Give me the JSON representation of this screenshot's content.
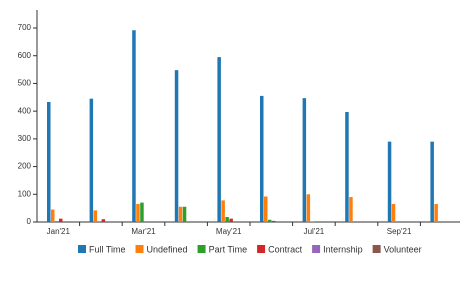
{
  "chart_data": {
    "type": "bar",
    "categories": [
      "Jan'21",
      null,
      "Mar'21",
      null,
      "May'21",
      null,
      "Jul'21",
      null,
      "Sep'21",
      null
    ],
    "series": [
      {
        "name": "Full Time",
        "color": "#1f77b4",
        "values": [
          433,
          445,
          692,
          548,
          595,
          455,
          447,
          397,
          290,
          290
        ]
      },
      {
        "name": "Undefined",
        "color": "#ff7f0e",
        "values": [
          45,
          42,
          65,
          55,
          78,
          92,
          100,
          90,
          65,
          65
        ]
      },
      {
        "name": "Part Time",
        "color": "#2ca02c",
        "values": [
          3,
          0,
          70,
          55,
          18,
          8,
          2,
          0,
          0,
          0
        ]
      },
      {
        "name": "Contract",
        "color": "#d62728",
        "values": [
          12,
          10,
          0,
          0,
          12,
          4,
          0,
          0,
          0,
          0
        ]
      },
      {
        "name": "Internship",
        "color": "#9467bd",
        "values": [
          0,
          0,
          0,
          0,
          0,
          0,
          0,
          0,
          0,
          0
        ]
      },
      {
        "name": "Volunteer",
        "color": "#8c564b",
        "values": [
          0,
          0,
          0,
          0,
          0,
          0,
          0,
          0,
          0,
          0
        ]
      }
    ],
    "ylim": [
      0,
      765
    ],
    "yticks": [
      0,
      100,
      200,
      300,
      400,
      500,
      600,
      700
    ],
    "legend": "bottom"
  }
}
